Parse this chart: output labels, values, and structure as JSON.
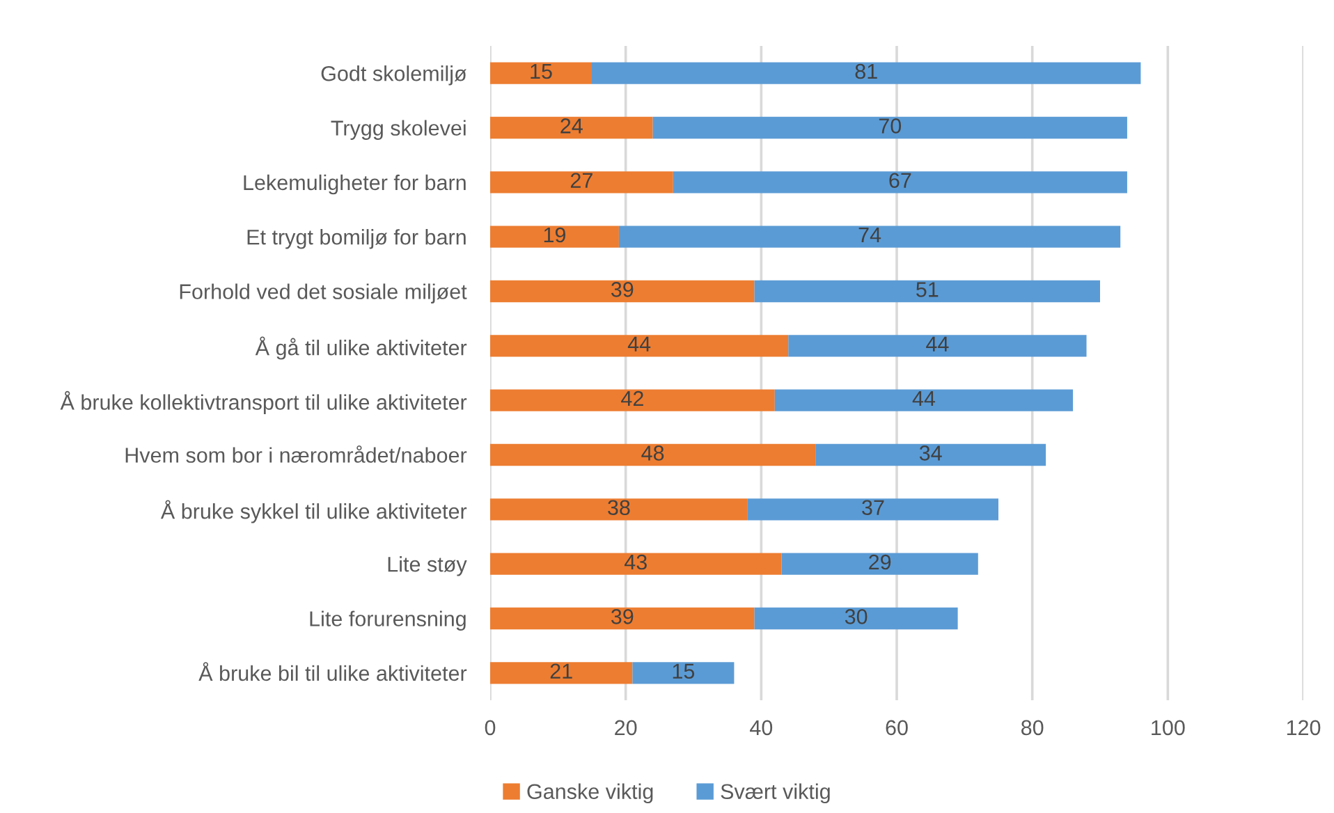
{
  "chart_data": {
    "type": "bar",
    "orientation": "horizontal",
    "stacked": true,
    "categories": [
      "Godt skolemiljø",
      "Trygg skolevei",
      "Lekemuligheter for barn",
      "Et trygt bomiljø for barn",
      "Forhold ved det sosiale miljøet",
      "Å gå til ulike aktiviteter",
      "Å bruke kollektivtransport til ulike aktiviteter",
      "Hvem som bor i nærområdet/naboer",
      "Å bruke sykkel til ulike aktiviteter",
      "Lite støy",
      "Lite forurensning",
      "Å bruke bil til ulike aktiviteter"
    ],
    "series": [
      {
        "name": "Ganske viktig",
        "color": "#ed7d31",
        "values": [
          15,
          24,
          27,
          19,
          39,
          44,
          42,
          48,
          38,
          43,
          39,
          21
        ]
      },
      {
        "name": "Svært viktig",
        "color": "#5b9bd5",
        "values": [
          81,
          70,
          67,
          74,
          51,
          44,
          44,
          34,
          37,
          29,
          30,
          15
        ]
      }
    ],
    "xlim": [
      0,
      120
    ],
    "xticks": [
      0,
      20,
      40,
      60,
      80,
      100,
      120
    ],
    "grid": "x",
    "legend": "bottom",
    "data_labels": true
  }
}
